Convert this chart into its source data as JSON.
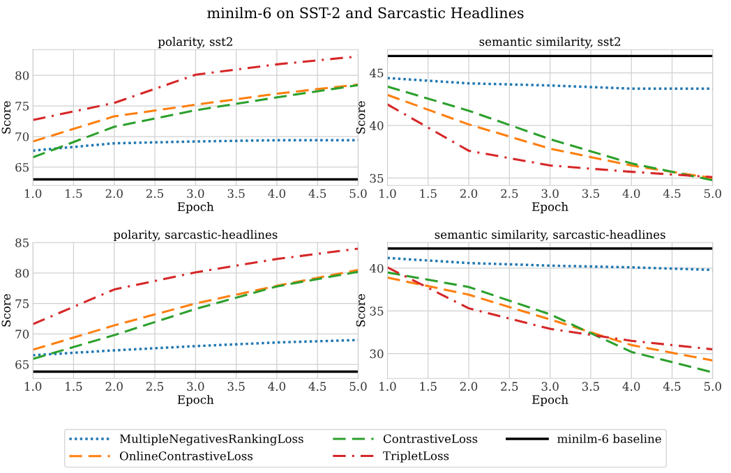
{
  "chart_data": [
    {
      "type": "line",
      "title": "polarity, sst2",
      "xlabel": "Epoch",
      "ylabel": "Score",
      "annotations": [
        "minilm-6 on SST-2 and Sarcastic Headlines"
      ],
      "x": [
        1,
        2,
        3,
        4,
        5
      ],
      "series": [
        {
          "name": "MultipleNegativesRankingLoss",
          "color": "#1f77b4",
          "line_style": "dotted",
          "values": [
            67.7,
            68.9,
            69.2,
            69.4,
            69.4
          ]
        },
        {
          "name": "OnlineContrastiveLoss",
          "color": "#ff7f0e",
          "line_style": "dashed",
          "values": [
            69.2,
            73.3,
            75.2,
            77.0,
            78.5
          ]
        },
        {
          "name": "ContrastiveLoss",
          "color": "#2ca02c",
          "line_style": "dashed",
          "values": [
            66.6,
            71.6,
            74.3,
            76.4,
            78.4
          ]
        },
        {
          "name": "TripletLoss",
          "color": "#d62728",
          "line_style": "dashdot",
          "values": [
            72.7,
            75.5,
            80.1,
            81.8,
            83.1
          ]
        },
        {
          "name": "minilm-6 baseline",
          "color": "#000000",
          "line_style": "solid",
          "values": [
            63.0,
            63.0,
            63.0,
            63.0,
            63.0
          ]
        }
      ],
      "xlim": [
        1,
        5
      ],
      "xticks": [
        {
          "value": 1,
          "label": "1.0"
        },
        {
          "value": 1.5,
          "label": "1.5"
        },
        {
          "value": 2,
          "label": "2.0"
        },
        {
          "value": 2.5,
          "label": "2.5"
        },
        {
          "value": 3,
          "label": "3.0"
        },
        {
          "value": 3.5,
          "label": "3.5"
        },
        {
          "value": 4,
          "label": "4.0"
        },
        {
          "value": 4.5,
          "label": "4.5"
        },
        {
          "value": 5,
          "label": "5.0"
        }
      ],
      "ylim": [
        62.0,
        84.2
      ],
      "yticks": [
        65,
        70,
        75,
        80
      ],
      "grid": true,
      "legend": "bottom"
    },
    {
      "type": "line",
      "title": "semantic similarity, sst2",
      "xlabel": "Epoch",
      "ylabel": "Score",
      "x": [
        1,
        2,
        3,
        4,
        5
      ],
      "series": [
        {
          "color": "#1f77b4",
          "line_style": "dotted",
          "values": [
            44.5,
            44.0,
            43.8,
            43.5,
            43.5
          ]
        },
        {
          "color": "#ff7f0e",
          "line_style": "dashed",
          "values": [
            42.9,
            40.1,
            37.8,
            36.2,
            35.0
          ]
        },
        {
          "color": "#2ca02c",
          "line_style": "dashed",
          "values": [
            43.7,
            41.4,
            38.7,
            36.4,
            34.8
          ]
        },
        {
          "color": "#d62728",
          "line_style": "dashdot",
          "values": [
            42.0,
            37.6,
            36.2,
            35.6,
            35.1
          ]
        },
        {
          "color": "#000000",
          "line_style": "solid",
          "values": [
            46.6,
            46.6,
            46.6,
            46.6,
            46.6
          ]
        }
      ],
      "xlim": [
        1,
        5
      ],
      "xticks": [
        {
          "value": 1,
          "label": "1.0"
        },
        {
          "value": 1.5,
          "label": "1.5"
        },
        {
          "value": 2,
          "label": "2.0"
        },
        {
          "value": 2.5,
          "label": "2.5"
        },
        {
          "value": 3,
          "label": "3.0"
        },
        {
          "value": 3.5,
          "label": "3.5"
        },
        {
          "value": 4,
          "label": "4.0"
        },
        {
          "value": 4.5,
          "label": "4.5"
        },
        {
          "value": 5,
          "label": "5.0"
        }
      ],
      "ylim": [
        34.3,
        47.2
      ],
      "yticks": [
        35,
        40,
        45
      ],
      "grid": true,
      "legend": "bottom"
    },
    {
      "type": "line",
      "title": "polarity, sarcastic-headlines",
      "xlabel": "Epoch",
      "ylabel": "Score",
      "x": [
        1,
        2,
        3,
        4,
        5
      ],
      "series": [
        {
          "color": "#1f77b4",
          "line_style": "dotted",
          "values": [
            66.5,
            67.3,
            68.0,
            68.6,
            69.0
          ]
        },
        {
          "color": "#ff7f0e",
          "line_style": "dashed",
          "values": [
            67.4,
            71.4,
            75.0,
            77.9,
            80.5
          ]
        },
        {
          "color": "#2ca02c",
          "line_style": "dashed",
          "values": [
            65.9,
            69.8,
            74.1,
            77.8,
            80.2
          ]
        },
        {
          "color": "#d62728",
          "line_style": "dashdot",
          "values": [
            71.6,
            77.3,
            80.1,
            82.3,
            84.0
          ]
        },
        {
          "color": "#000000",
          "line_style": "solid",
          "values": [
            63.8,
            63.8,
            63.8,
            63.8,
            63.8
          ]
        }
      ],
      "xlim": [
        1,
        5
      ],
      "xticks": [
        {
          "value": 1,
          "label": "1.0"
        },
        {
          "value": 1.5,
          "label": "1.5"
        },
        {
          "value": 2,
          "label": "2.0"
        },
        {
          "value": 2.5,
          "label": "2.5"
        },
        {
          "value": 3,
          "label": "3.0"
        },
        {
          "value": 3.5,
          "label": "3.5"
        },
        {
          "value": 4,
          "label": "4.0"
        },
        {
          "value": 4.5,
          "label": "4.5"
        },
        {
          "value": 5,
          "label": "5.0"
        }
      ],
      "ylim": [
        62.7,
        85.0
      ],
      "yticks": [
        65,
        70,
        75,
        80,
        85
      ],
      "grid": true,
      "legend": "bottom"
    },
    {
      "type": "line",
      "title": "semantic similarity, sarcastic-headlines",
      "xlabel": "Epoch",
      "ylabel": "Score",
      "x": [
        1,
        2,
        3,
        4,
        5
      ],
      "series": [
        {
          "color": "#1f77b4",
          "line_style": "dotted",
          "values": [
            41.2,
            40.6,
            40.3,
            40.1,
            39.8
          ]
        },
        {
          "color": "#ff7f0e",
          "line_style": "dashed",
          "values": [
            38.9,
            36.9,
            34.0,
            31.0,
            29.2
          ]
        },
        {
          "color": "#2ca02c",
          "line_style": "dashed",
          "values": [
            39.5,
            37.8,
            34.6,
            30.2,
            27.8
          ]
        },
        {
          "color": "#d62728",
          "line_style": "dashdot",
          "values": [
            40.1,
            35.3,
            32.9,
            31.5,
            30.5
          ]
        },
        {
          "color": "#000000",
          "line_style": "solid",
          "values": [
            42.3,
            42.3,
            42.3,
            42.3,
            42.3
          ]
        }
      ],
      "xlim": [
        1,
        5
      ],
      "xticks": [
        {
          "value": 1,
          "label": "1.0"
        },
        {
          "value": 1.5,
          "label": "1.5"
        },
        {
          "value": 2,
          "label": "2.0"
        },
        {
          "value": 2.5,
          "label": "2.5"
        },
        {
          "value": 3,
          "label": "3.0"
        },
        {
          "value": 3.5,
          "label": "3.5"
        },
        {
          "value": 4,
          "label": "4.0"
        },
        {
          "value": 4.5,
          "label": "4.5"
        },
        {
          "value": 5,
          "label": "5.0"
        }
      ],
      "ylim": [
        27.1,
        43.0
      ],
      "yticks": [
        30,
        35,
        40
      ],
      "grid": true,
      "legend": "bottom"
    }
  ]
}
